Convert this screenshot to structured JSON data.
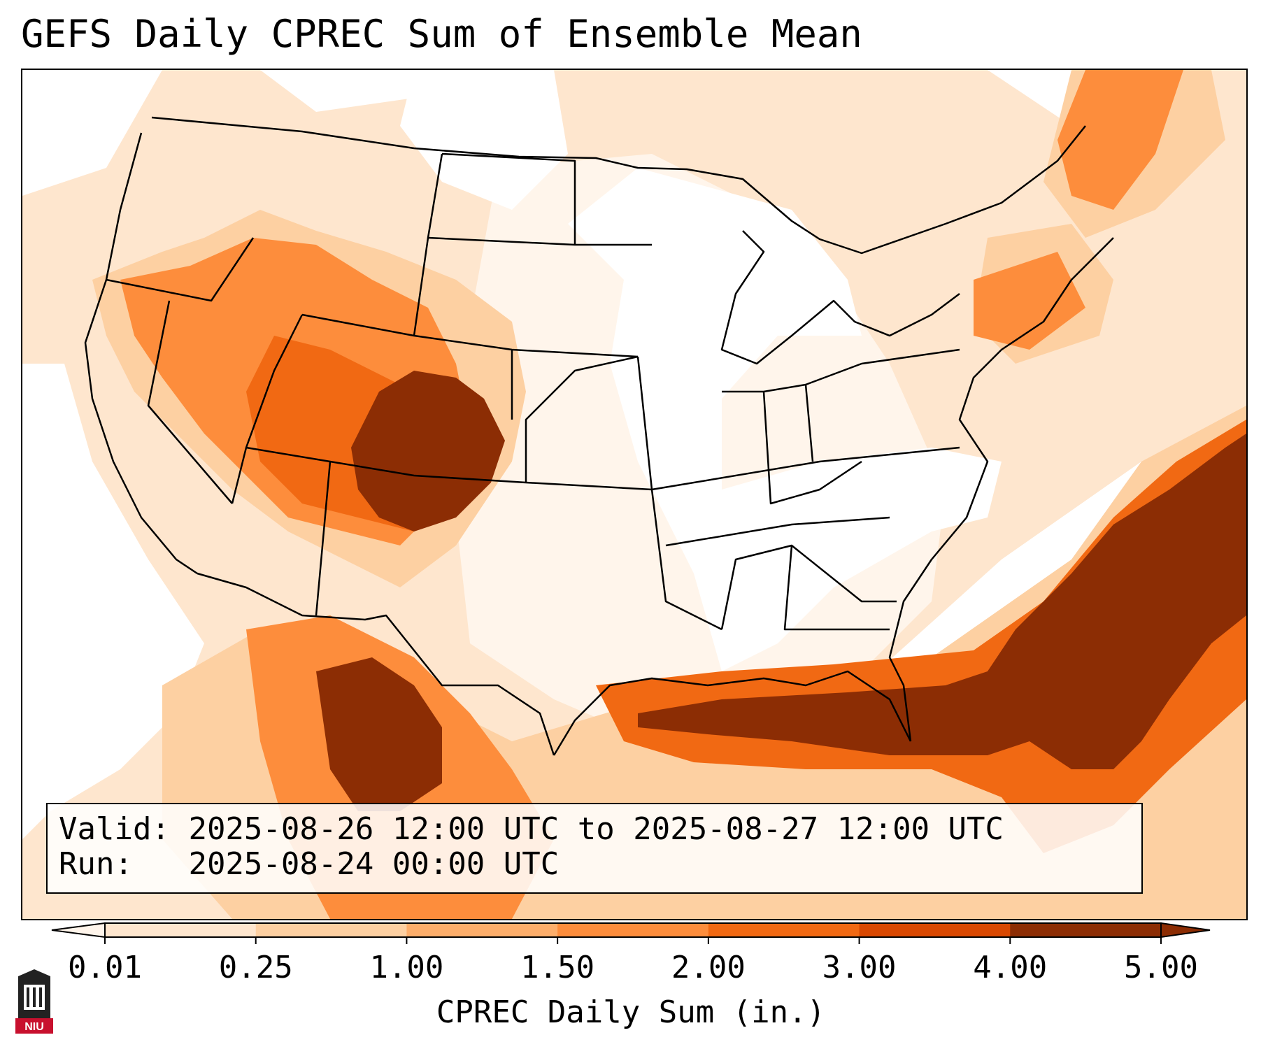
{
  "title": "GEFS Daily CPREC Sum of Ensemble Mean",
  "info": {
    "valid_label": "Valid:",
    "valid_value": "2025-08-26 12:00 UTC to 2025-08-27 12:00 UTC",
    "run_label": "Run:",
    "run_value": "2025-08-24 00:00 UTC"
  },
  "colorbar": {
    "label": "CPREC Daily Sum (in.)",
    "ticks": [
      "0.01",
      "0.25",
      "1.00",
      "1.50",
      "2.00",
      "3.00",
      "4.00",
      "5.00"
    ],
    "colors": [
      "#fff5eb",
      "#fee6ce",
      "#fdd0a2",
      "#fdae6b",
      "#fd8d3c",
      "#f16913",
      "#d94801",
      "#8c2d04"
    ]
  },
  "logo": {
    "text": "NIU",
    "colors": [
      "#c8102e",
      "#222222",
      "#ffffff"
    ]
  },
  "map_colors": {
    "land_none": "#ffffff",
    "border": "#000000"
  }
}
